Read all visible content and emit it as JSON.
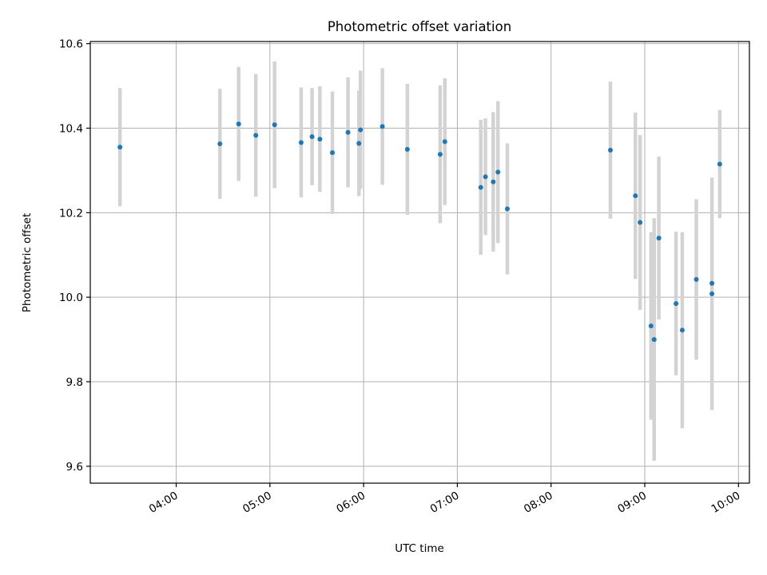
{
  "chart_data": {
    "type": "scatter",
    "title": "Photometric offset variation",
    "xlabel": "UTC time",
    "ylabel": "Photometric offset",
    "xlim": [
      "03:05",
      "10:07"
    ],
    "ylim": [
      9.56,
      10.605
    ],
    "x_ticks": [
      "04:00",
      "05:00",
      "06:00",
      "07:00",
      "08:00",
      "09:00",
      "10:00"
    ],
    "y_ticks": [
      9.6,
      9.8,
      10.0,
      10.2,
      10.4,
      10.6
    ],
    "y_tick_labels": [
      "9.6",
      "9.8",
      "10.0",
      "10.2",
      "10.4",
      "10.6"
    ],
    "grid": true,
    "error_bars": true,
    "series": [
      {
        "points": [
          {
            "x": "03:24",
            "y": 10.355,
            "err": 0.14
          },
          {
            "x": "04:28",
            "y": 10.363,
            "err": 0.13
          },
          {
            "x": "04:40",
            "y": 10.41,
            "err": 0.135
          },
          {
            "x": "04:51",
            "y": 10.383,
            "err": 0.145
          },
          {
            "x": "05:03",
            "y": 10.408,
            "err": 0.15
          },
          {
            "x": "05:20",
            "y": 10.366,
            "err": 0.13
          },
          {
            "x": "05:27",
            "y": 10.38,
            "err": 0.115
          },
          {
            "x": "05:32",
            "y": 10.374,
            "err": 0.125
          },
          {
            "x": "05:40",
            "y": 10.342,
            "err": 0.145
          },
          {
            "x": "05:50",
            "y": 10.39,
            "err": 0.13
          },
          {
            "x": "05:57",
            "y": 10.364,
            "err": 0.125
          },
          {
            "x": "05:58",
            "y": 10.396,
            "err": 0.14
          },
          {
            "x": "06:12",
            "y": 10.404,
            "err": 0.138
          },
          {
            "x": "06:28",
            "y": 10.35,
            "err": 0.155
          },
          {
            "x": "06:49",
            "y": 10.338,
            "err": 0.163
          },
          {
            "x": "06:52",
            "y": 10.368,
            "err": 0.15
          },
          {
            "x": "07:15",
            "y": 10.26,
            "err": 0.16
          },
          {
            "x": "07:18",
            "y": 10.285,
            "err": 0.138
          },
          {
            "x": "07:23",
            "y": 10.273,
            "err": 0.165
          },
          {
            "x": "07:26",
            "y": 10.296,
            "err": 0.168
          },
          {
            "x": "07:32",
            "y": 10.209,
            "err": 0.155
          },
          {
            "x": "08:38",
            "y": 10.348,
            "err": 0.162
          },
          {
            "x": "08:54",
            "y": 10.24,
            "err": 0.197
          },
          {
            "x": "08:57",
            "y": 10.177,
            "err": 0.207
          },
          {
            "x": "09:04",
            "y": 9.932,
            "err": 0.222
          },
          {
            "x": "09:06",
            "y": 9.9,
            "err": 0.287
          },
          {
            "x": "09:09",
            "y": 10.14,
            "err": 0.193
          },
          {
            "x": "09:20",
            "y": 9.985,
            "err": 0.17
          },
          {
            "x": "09:24",
            "y": 9.922,
            "err": 0.232
          },
          {
            "x": "09:33",
            "y": 10.042,
            "err": 0.19
          },
          {
            "x": "09:43",
            "y": 10.033,
            "err": 0.0
          },
          {
            "x": "09:43",
            "y": 10.008,
            "err": 0.275
          },
          {
            "x": "09:48",
            "y": 10.315,
            "err": 0.128
          }
        ]
      }
    ]
  },
  "colors": {
    "point": "#1f77b4",
    "errorbar": "#d3d3d3",
    "grid": "#b0b0b0"
  }
}
